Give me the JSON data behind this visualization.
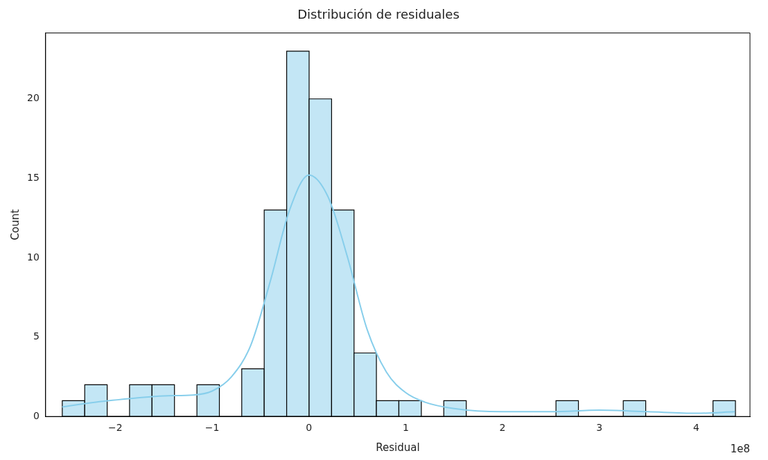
{
  "chart_data": {
    "type": "histogram",
    "title": "Distribución de residuales",
    "xlabel": "Residual",
    "ylabel": "Count",
    "annotations": [
      "1e8"
    ],
    "bins": [
      -2.548,
      -2.316,
      -2.084,
      -1.853,
      -1.621,
      -1.389,
      -1.157,
      -0.925,
      -0.694,
      -0.462,
      -0.23,
      0.002,
      0.234,
      0.466,
      0.697,
      0.929,
      1.161,
      1.393,
      1.625,
      1.856,
      2.088,
      2.32,
      2.552,
      2.784,
      3.015,
      3.247,
      3.479,
      3.711,
      3.943,
      4.174,
      4.406
    ],
    "values": [
      1,
      2,
      0,
      2,
      2,
      0,
      2,
      0,
      3,
      13,
      23,
      20,
      13,
      4,
      1,
      1,
      0,
      1,
      0,
      0,
      0,
      0,
      1,
      0,
      0,
      1,
      0,
      0,
      0,
      1
    ],
    "color": "#c3e6f5",
    "series": [
      {
        "type": "line",
        "color": "#87ceeb",
        "x": [
          -2.55,
          -2.2,
          -1.8,
          -1.5,
          -1.2,
          -1.0,
          -0.8,
          -0.6,
          -0.4,
          -0.2,
          0,
          0.2,
          0.4,
          0.6,
          0.8,
          1.0,
          1.2,
          1.5,
          2.0,
          2.5,
          3.0,
          3.5,
          4.0,
          4.4
        ],
        "values": [
          0.6,
          0.9,
          1.15,
          1.3,
          1.35,
          1.6,
          2.5,
          4.5,
          8.5,
          13,
          15.2,
          13.8,
          10,
          5.5,
          2.8,
          1.5,
          0.9,
          0.5,
          0.3,
          0.3,
          0.4,
          0.3,
          0.2,
          0.3
        ]
      }
    ],
    "xlim": [
      -2.72,
      4.556
    ],
    "ylim": [
      0,
      24.15
    ],
    "xticks": [
      {
        "value": -2,
        "label": "−2"
      },
      {
        "value": -1,
        "label": "−1"
      },
      0,
      1,
      2,
      3,
      4
    ],
    "yticks": [
      0,
      5,
      10,
      15,
      20
    ],
    "grid": false,
    "legend": false
  }
}
